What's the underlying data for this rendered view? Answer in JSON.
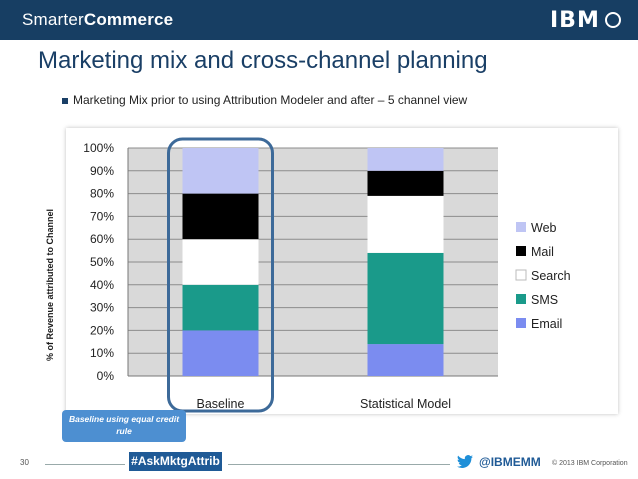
{
  "header": {
    "brand_light": "Smarter",
    "brand_bold": "Commerce",
    "logo_text": "IBM"
  },
  "title": "Marketing mix and cross-channel planning",
  "bullet": "Marketing Mix prior to using Attribution Modeler and after – 5 channel view",
  "callout": "Baseline using equal credit rule",
  "footer": {
    "page": "30",
    "hashtag": "#AskMktgAttrib",
    "handle": "@IBMEMM",
    "copyright": "© 2013 IBM Corporation"
  },
  "colors": {
    "Web": "#bfc5f4",
    "Mail": "#000000",
    "Search": "#ffffff",
    "SMS": "#1a9a8a",
    "Email": "#7b8cf0"
  },
  "chart_data": {
    "type": "bar",
    "stacked": true,
    "categories": [
      "Baseline",
      "Statistical Model"
    ],
    "series": [
      {
        "name": "Email",
        "values": [
          20,
          14
        ]
      },
      {
        "name": "SMS",
        "values": [
          20,
          40
        ]
      },
      {
        "name": "Search",
        "values": [
          20,
          25
        ]
      },
      {
        "name": "Mail",
        "values": [
          20,
          11
        ]
      },
      {
        "name": "Web",
        "values": [
          20,
          10
        ]
      }
    ],
    "legend_order": [
      "Web",
      "Mail",
      "Search",
      "SMS",
      "Email"
    ],
    "ylabel": "% of Revenue attributed to Channel",
    "ylim": [
      0,
      100
    ],
    "yticks": [
      "0%",
      "10%",
      "20%",
      "30%",
      "40%",
      "50%",
      "60%",
      "70%",
      "80%",
      "90%",
      "100%"
    ],
    "grid": true,
    "legend": "right"
  }
}
